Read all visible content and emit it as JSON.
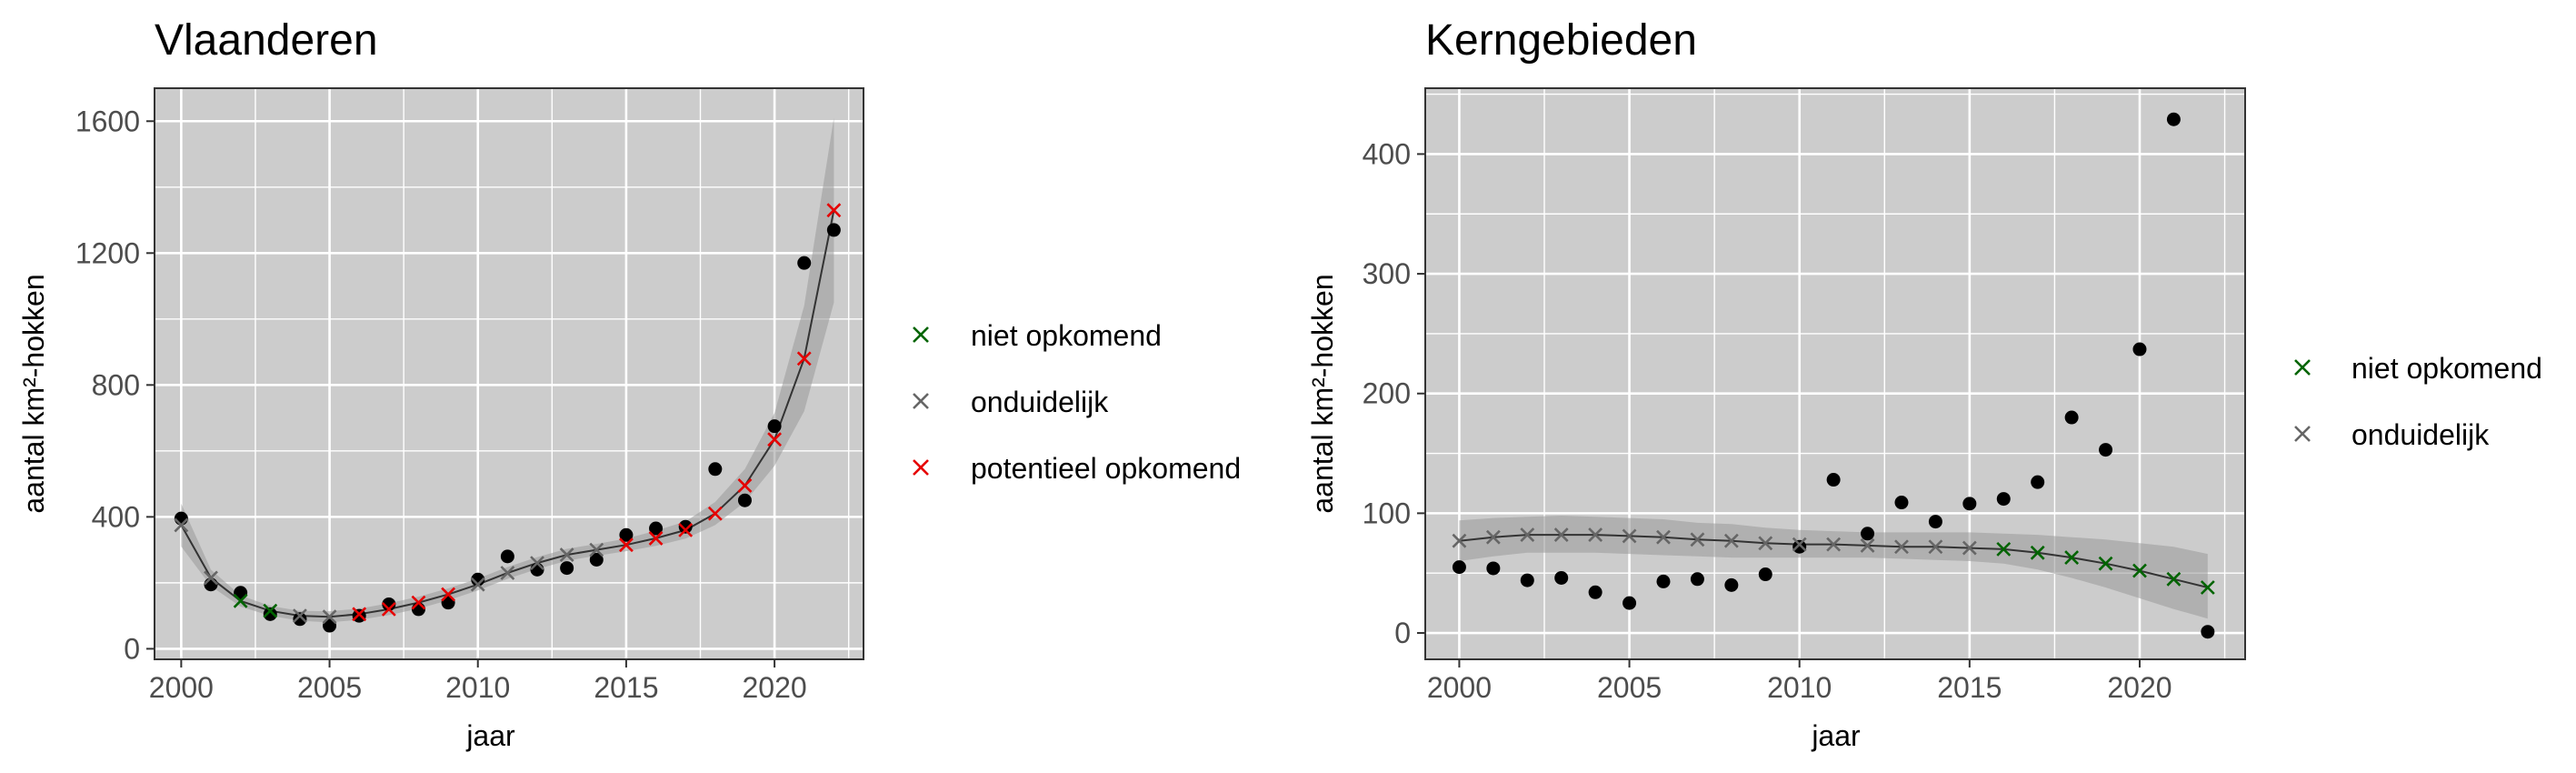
{
  "colors": {
    "panel_bg": "#cccccc",
    "grid": "#ffffff",
    "observed": "#000000",
    "niet opkomend": "#006400",
    "onduidelijk": "#666666",
    "potentieel opkomend": "#e60000",
    "ribbon": "#999999",
    "line": "#333333"
  },
  "chart_data": [
    {
      "type": "scatter",
      "title": "Vlaanderen",
      "xlabel": "jaar",
      "ylabel": "aantal km²-hokken",
      "xlim": [
        1999.1,
        2023.0
      ],
      "ylim": [
        -32,
        1700
      ],
      "xticks": [
        2000,
        2005,
        2010,
        2015,
        2020
      ],
      "xtick_labels": [
        "2000",
        "2005",
        "2010",
        "2015",
        "2020"
      ],
      "yticks": [
        0,
        400,
        800,
        1200,
        1600
      ],
      "ytick_labels": [
        "0",
        "400",
        "800",
        "1200",
        "1600"
      ],
      "grid": true,
      "legend_position": "right",
      "legend": [
        "niet opkomend",
        "onduidelijk",
        "potentieel opkomend"
      ],
      "observed": {
        "x": [
          2000,
          2001,
          2002,
          2003,
          2004,
          2005,
          2006,
          2007,
          2008,
          2009,
          2010,
          2011,
          2012,
          2013,
          2014,
          2015,
          2016,
          2017,
          2018,
          2019,
          2020,
          2021,
          2022
        ],
        "y": [
          395,
          195,
          170,
          105,
          90,
          70,
          100,
          135,
          120,
          140,
          210,
          280,
          240,
          245,
          270,
          345,
          365,
          370,
          545,
          450,
          675,
          1170,
          1270
        ]
      },
      "fitted": {
        "x": [
          2000,
          2001,
          2002,
          2003,
          2004,
          2005,
          2006,
          2007,
          2008,
          2009,
          2010,
          2011,
          2012,
          2013,
          2014,
          2015,
          2016,
          2017,
          2018,
          2019,
          2020,
          2021,
          2022
        ],
        "y": [
          375,
          215,
          145,
          115,
          100,
          97,
          105,
          120,
          140,
          165,
          195,
          230,
          260,
          285,
          300,
          315,
          335,
          360,
          410,
          495,
          635,
          880,
          1330
        ],
        "lower": [
          310,
          190,
          128,
          100,
          85,
          80,
          88,
          102,
          122,
          147,
          177,
          212,
          242,
          267,
          282,
          296,
          312,
          334,
          375,
          445,
          555,
          720,
          1050
        ],
        "upper": [
          440,
          240,
          162,
          130,
          115,
          114,
          122,
          138,
          158,
          183,
          213,
          248,
          278,
          303,
          318,
          334,
          358,
          386,
          445,
          545,
          715,
          1040,
          1610
        ],
        "status": [
          "onduidelijk",
          "onduidelijk",
          "niet opkomend",
          "niet opkomend",
          "onduidelijk",
          "onduidelijk",
          "potentieel opkomend",
          "potentieel opkomend",
          "potentieel opkomend",
          "potentieel opkomend",
          "onduidelijk",
          "onduidelijk",
          "onduidelijk",
          "onduidelijk",
          "onduidelijk",
          "potentieel opkomend",
          "potentieel opkomend",
          "potentieel opkomend",
          "potentieel opkomend",
          "potentieel opkomend",
          "potentieel opkomend",
          "potentieel opkomend",
          "potentieel opkomend"
        ]
      }
    },
    {
      "type": "scatter",
      "title": "Kerngebieden",
      "xlabel": "jaar",
      "ylabel": "aantal km²-hokken",
      "xlim": [
        1999.0,
        2023.1
      ],
      "ylim": [
        -22,
        455
      ],
      "xticks": [
        2000,
        2005,
        2010,
        2015,
        2020
      ],
      "xtick_labels": [
        "2000",
        "2005",
        "2010",
        "2015",
        "2020"
      ],
      "yticks": [
        0,
        100,
        200,
        300,
        400
      ],
      "ytick_labels": [
        "0",
        "100",
        "200",
        "300",
        "400"
      ],
      "grid": true,
      "legend_position": "right",
      "legend": [
        "niet opkomend",
        "onduidelijk"
      ],
      "observed": {
        "x": [
          2000,
          2001,
          2002,
          2003,
          2004,
          2005,
          2006,
          2007,
          2008,
          2009,
          2010,
          2011,
          2012,
          2013,
          2014,
          2015,
          2016,
          2017,
          2018,
          2019,
          2020,
          2021,
          2022
        ],
        "y": [
          55,
          54,
          44,
          46,
          34,
          25,
          43,
          45,
          40,
          49,
          72,
          128,
          83,
          109,
          93,
          108,
          112,
          126,
          180,
          153,
          237,
          429,
          1
        ]
      },
      "fitted": {
        "x": [
          2000,
          2001,
          2002,
          2003,
          2004,
          2005,
          2006,
          2007,
          2008,
          2009,
          2010,
          2011,
          2012,
          2013,
          2014,
          2015,
          2016,
          2017,
          2018,
          2019,
          2020,
          2021,
          2022
        ],
        "y": [
          77,
          80,
          82,
          82,
          82,
          81,
          80,
          78,
          77,
          75,
          74,
          74,
          73,
          72,
          72,
          71,
          70,
          67,
          63,
          58,
          52,
          45,
          38
        ],
        "lower": [
          60,
          64,
          67,
          67,
          67,
          66,
          65,
          64,
          63,
          63,
          63,
          63,
          63,
          62,
          61,
          60,
          58,
          53,
          46,
          38,
          29,
          20,
          12
        ],
        "upper": [
          94,
          96,
          97,
          98,
          97,
          96,
          95,
          92,
          91,
          88,
          86,
          85,
          84,
          84,
          84,
          84,
          83,
          82,
          80,
          78,
          75,
          72,
          66
        ],
        "status": [
          "onduidelijk",
          "onduidelijk",
          "onduidelijk",
          "onduidelijk",
          "onduidelijk",
          "onduidelijk",
          "onduidelijk",
          "onduidelijk",
          "onduidelijk",
          "onduidelijk",
          "onduidelijk",
          "onduidelijk",
          "onduidelijk",
          "onduidelijk",
          "onduidelijk",
          "onduidelijk",
          "niet opkomend",
          "niet opkomend",
          "niet opkomend",
          "niet opkomend",
          "niet opkomend",
          "niet opkomend",
          "niet opkomend"
        ]
      }
    }
  ]
}
